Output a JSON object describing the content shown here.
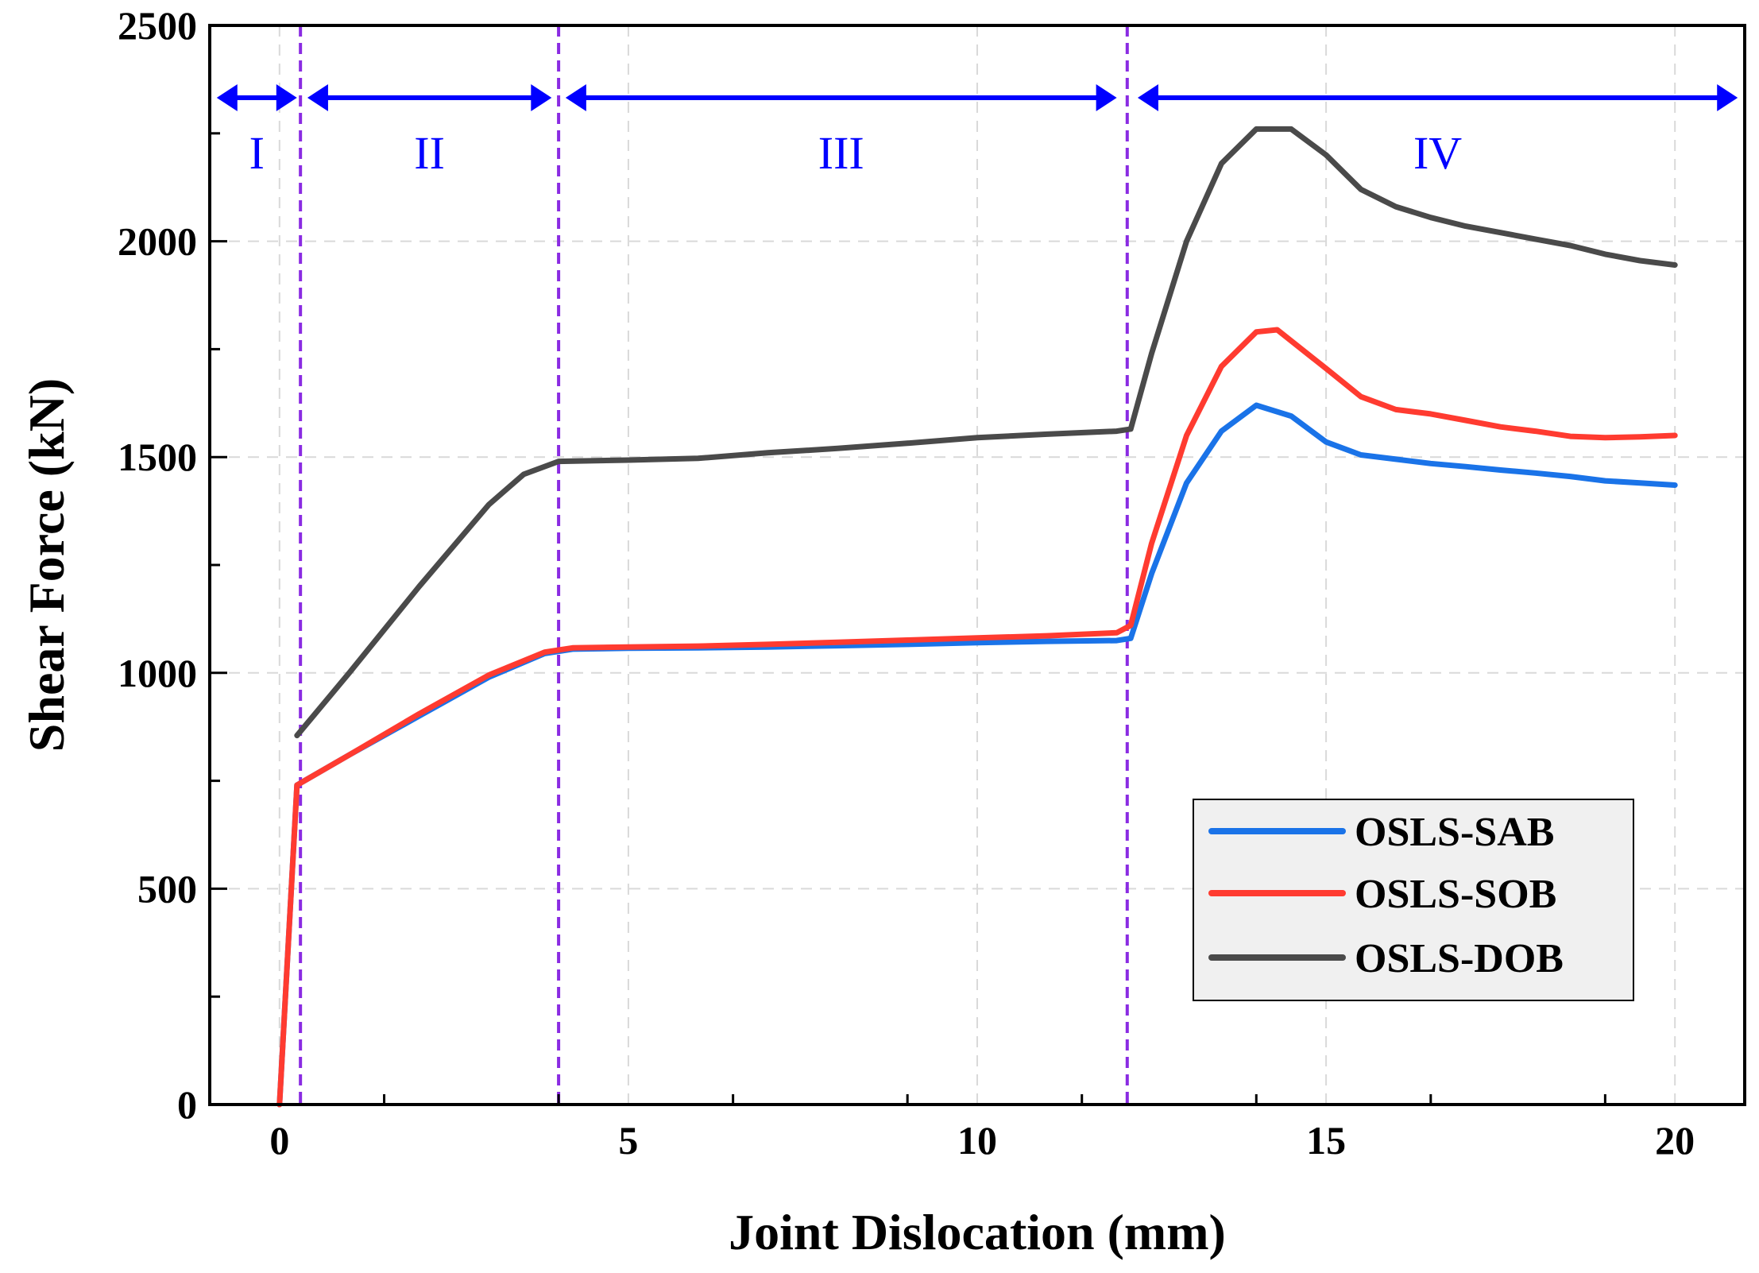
{
  "chart_data": {
    "type": "line",
    "title": "",
    "xlabel": "Joint Dislocation (mm)",
    "ylabel": "Shear Force (kN)",
    "xlim": [
      -1,
      21
    ],
    "ylim": [
      0,
      2500
    ],
    "xticks": [
      0,
      5,
      10,
      15,
      20
    ],
    "xtick_labels": [
      "0",
      "5",
      "10",
      "15",
      "20"
    ],
    "yticks": [
      0,
      500,
      1000,
      1500,
      2000,
      2500
    ],
    "ytick_labels": [
      "0",
      "500",
      "1000",
      "1500",
      "2000",
      "2500"
    ],
    "grid": true,
    "legend_position": "bottom-right",
    "region_boundaries": [
      0.3,
      4.0,
      12.15
    ],
    "regions": [
      {
        "label": "I",
        "x_start": -0.9,
        "x_end": 0.25
      },
      {
        "label": "II",
        "x_start": 0.4,
        "x_end": 3.9
      },
      {
        "label": "III",
        "x_start": 4.1,
        "x_end": 12.0
      },
      {
        "label": "IV",
        "x_start": 12.3,
        "x_end": 20.9
      }
    ],
    "colors": {
      "region_arrow": "#0000ff",
      "boundary_line": "#8a2be2",
      "grid": "#d9d9d9"
    },
    "series": [
      {
        "name": "OSLS-SAB",
        "color": "#1a73e8",
        "x": [
          0,
          0.25,
          1,
          2,
          3,
          3.8,
          4.2,
          5,
          6,
          7,
          8,
          9,
          10,
          11,
          12,
          12.2,
          12.5,
          13,
          13.5,
          14,
          14.5,
          15,
          15.5,
          16,
          16.5,
          17,
          17.5,
          18,
          18.5,
          19,
          19.5,
          20
        ],
        "values": [
          0,
          740,
          810,
          900,
          990,
          1045,
          1055,
          1057,
          1058,
          1060,
          1063,
          1066,
          1070,
          1073,
          1075,
          1080,
          1230,
          1440,
          1560,
          1620,
          1595,
          1535,
          1505,
          1495,
          1485,
          1478,
          1470,
          1463,
          1455,
          1445,
          1440,
          1435
        ]
      },
      {
        "name": "OSLS-SOB",
        "color": "#ff3b30",
        "x": [
          0,
          0.25,
          1,
          2,
          3,
          3.8,
          4.2,
          5,
          6,
          7,
          8,
          9,
          10,
          11,
          12,
          12.2,
          12.5,
          13,
          13.5,
          14,
          14.3,
          15,
          15.5,
          16,
          16.5,
          17,
          17.5,
          18,
          18.5,
          19,
          19.5,
          20
        ],
        "values": [
          0,
          740,
          810,
          905,
          995,
          1048,
          1058,
          1060,
          1062,
          1066,
          1071,
          1076,
          1081,
          1086,
          1093,
          1110,
          1300,
          1550,
          1710,
          1790,
          1795,
          1705,
          1640,
          1610,
          1600,
          1585,
          1570,
          1560,
          1548,
          1545,
          1547,
          1550
        ]
      },
      {
        "name": "OSLS-DOB",
        "color": "#4a4a4a",
        "x": [
          0.25,
          1,
          2,
          3,
          3.5,
          4,
          5,
          6,
          7,
          8,
          9,
          10,
          11,
          12,
          12.2,
          12.5,
          13,
          13.5,
          14,
          14.5,
          15,
          15.5,
          16,
          16.5,
          17,
          17.5,
          18,
          18.5,
          19,
          19.5,
          20
        ],
        "values": [
          855,
          1000,
          1200,
          1390,
          1460,
          1490,
          1493,
          1497,
          1510,
          1520,
          1532,
          1545,
          1553,
          1560,
          1565,
          1740,
          2000,
          2180,
          2260,
          2260,
          2200,
          2120,
          2080,
          2055,
          2035,
          2020,
          2005,
          1990,
          1970,
          1955,
          1945
        ]
      }
    ]
  }
}
